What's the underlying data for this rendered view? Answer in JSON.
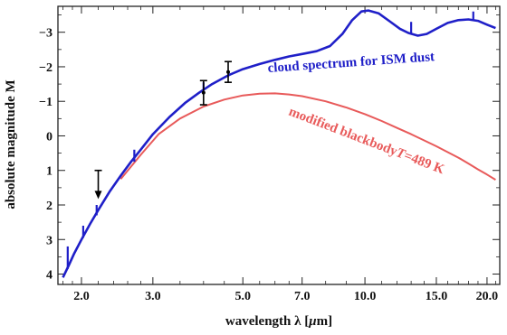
{
  "chart_data": {
    "type": "line",
    "title": "",
    "xlabel_prefix": "wavelength  λ [",
    "xlabel_unit_mu": "μ",
    "xlabel_suffix": "m]",
    "ylabel": "absolute  magnitude  M",
    "x_scale": "log",
    "y_inverted": true,
    "xlim": [
      1.75,
      21.5
    ],
    "ylim": [
      4.3,
      -3.75
    ],
    "x_ticks": [
      2.0,
      3.0,
      5.0,
      7.0,
      10.0,
      15.0,
      20.0
    ],
    "x_tick_labels": [
      "2.0",
      "3.0",
      "5.0",
      "7.0",
      "10.0",
      "15.0",
      "20.0"
    ],
    "y_ticks": [
      -3,
      -2,
      -1,
      0,
      1,
      2,
      3,
      4
    ],
    "y_tick_labels": [
      "−3",
      "−2",
      "−1",
      "0",
      "1",
      "2",
      "3",
      "4"
    ],
    "grid": false,
    "colors": {
      "cloud": "#1f1fc8",
      "blackbody": "#e85a5a",
      "data": "#000000"
    },
    "series": [
      {
        "name": "cloud spectrum for ISM dust",
        "color": "#1f1fc8",
        "points": [
          [
            1.8,
            4.1
          ],
          [
            1.86,
            3.75
          ],
          [
            1.92,
            3.4
          ],
          [
            2.0,
            3.0
          ],
          [
            2.1,
            2.55
          ],
          [
            2.2,
            2.15
          ],
          [
            2.35,
            1.6
          ],
          [
            2.5,
            1.15
          ],
          [
            2.65,
            0.75
          ],
          [
            2.8,
            0.4
          ],
          [
            3.0,
            -0.05
          ],
          [
            3.3,
            -0.55
          ],
          [
            3.6,
            -0.95
          ],
          [
            3.9,
            -1.25
          ],
          [
            4.2,
            -1.5
          ],
          [
            4.6,
            -1.75
          ],
          [
            5.0,
            -1.93
          ],
          [
            5.5,
            -2.08
          ],
          [
            6.0,
            -2.2
          ],
          [
            6.5,
            -2.3
          ],
          [
            7.0,
            -2.37
          ],
          [
            7.6,
            -2.45
          ],
          [
            8.2,
            -2.6
          ],
          [
            8.8,
            -2.95
          ],
          [
            9.3,
            -3.35
          ],
          [
            9.8,
            -3.6
          ],
          [
            10.2,
            -3.63
          ],
          [
            10.8,
            -3.55
          ],
          [
            11.5,
            -3.32
          ],
          [
            12.2,
            -3.1
          ],
          [
            12.8,
            -2.98
          ],
          [
            13.5,
            -2.9
          ],
          [
            14.2,
            -2.95
          ],
          [
            15.0,
            -3.1
          ],
          [
            16.0,
            -3.27
          ],
          [
            17.0,
            -3.35
          ],
          [
            18.0,
            -3.37
          ],
          [
            19.0,
            -3.33
          ],
          [
            20.0,
            -3.22
          ],
          [
            21.0,
            -3.12
          ]
        ],
        "spikes": [
          [
            1.85,
            3.85,
            3.2
          ],
          [
            2.02,
            2.95,
            2.6
          ],
          [
            2.18,
            2.3,
            2.0
          ],
          [
            2.7,
            0.75,
            0.4
          ],
          [
            4.0,
            -1.35,
            -1.55
          ],
          [
            13.0,
            -2.95,
            -3.3
          ],
          [
            18.5,
            -3.37,
            -3.6
          ]
        ]
      },
      {
        "name": "modified blackbody",
        "temperature_label": "T",
        "temperature_value": "=489 K",
        "color": "#e85a5a",
        "points": [
          [
            2.5,
            1.25
          ],
          [
            2.8,
            0.55
          ],
          [
            3.1,
            -0.05
          ],
          [
            3.5,
            -0.5
          ],
          [
            4.0,
            -0.85
          ],
          [
            4.5,
            -1.05
          ],
          [
            5.0,
            -1.17
          ],
          [
            5.5,
            -1.22
          ],
          [
            6.0,
            -1.23
          ],
          [
            6.5,
            -1.2
          ],
          [
            7.0,
            -1.15
          ],
          [
            8.0,
            -1.0
          ],
          [
            9.0,
            -0.82
          ],
          [
            10.0,
            -0.63
          ],
          [
            11.0,
            -0.43
          ],
          [
            12.0,
            -0.23
          ],
          [
            13.0,
            -0.05
          ],
          [
            14.0,
            0.13
          ],
          [
            15.0,
            0.3
          ],
          [
            16.0,
            0.47
          ],
          [
            17.0,
            0.63
          ],
          [
            18.0,
            0.8
          ],
          [
            19.0,
            0.97
          ],
          [
            20.0,
            1.12
          ],
          [
            21.0,
            1.27
          ]
        ]
      }
    ],
    "observations": [
      {
        "x": 2.2,
        "y": 1.0,
        "type": "upper_limit",
        "arrow_to": 1.8
      },
      {
        "x": 4.0,
        "y": -1.25,
        "err_low": 0.35,
        "err_high": 0.35
      },
      {
        "x": 4.6,
        "y": -1.85,
        "err_low": 0.3,
        "err_high": 0.3
      }
    ]
  }
}
